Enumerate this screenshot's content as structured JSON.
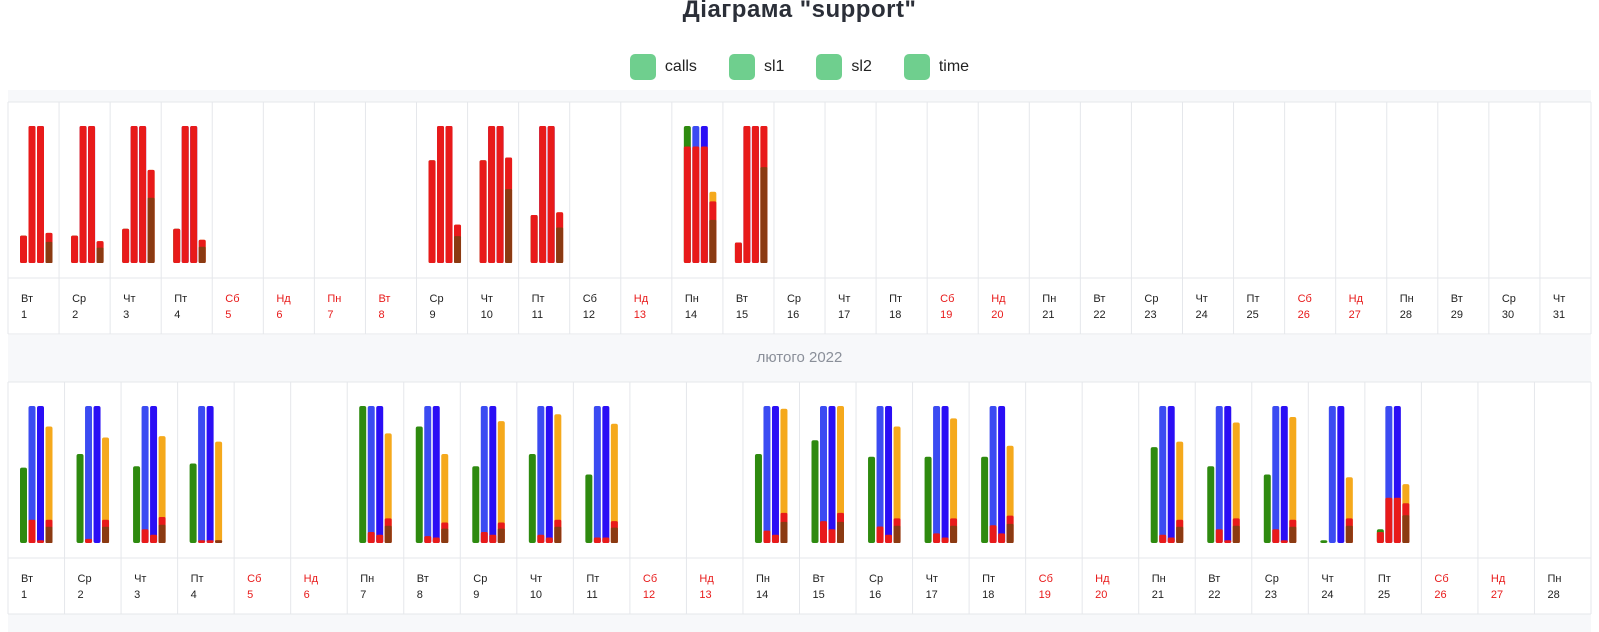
{
  "title": "Діаграма \"support\"",
  "legend": [
    {
      "label": "calls",
      "checked": true
    },
    {
      "label": "sl1",
      "checked": true
    },
    {
      "label": "sl2",
      "checked": true
    },
    {
      "label": "time",
      "checked": true
    }
  ],
  "colors": {
    "calls": "#2e8a0f",
    "sl1": "#3b4bf2",
    "sl2": "#2a0ef5",
    "time": "#f5a91c",
    "missed": "#e81a1a",
    "missed_dark": "#8b3a12",
    "weekend_text": "#e81a1a",
    "grid": "#e5e7eb",
    "band": "#f7f8fa",
    "check": "#6fcf8e"
  },
  "chart_data": [
    {
      "type": "bar",
      "month": "",
      "series_names": [
        "calls",
        "sl1",
        "sl2",
        "time"
      ],
      "days": [
        {
          "dow": "Вт",
          "day": "1",
          "weekend": false,
          "v": [
            0.2,
            1,
            1,
            0.22
          ],
          "r": [
            0.2,
            1,
            1,
            0.22
          ]
        },
        {
          "dow": "Ср",
          "day": "2",
          "weekend": false,
          "v": [
            0.2,
            1,
            1,
            0.16
          ],
          "r": [
            0.2,
            1,
            1,
            0.16
          ]
        },
        {
          "dow": "Чт",
          "day": "3",
          "weekend": false,
          "v": [
            0.25,
            1,
            1,
            0.68
          ],
          "r": [
            0.25,
            1,
            1,
            0.68
          ]
        },
        {
          "dow": "Пт",
          "day": "4",
          "weekend": false,
          "v": [
            0.25,
            1,
            1,
            0.17
          ],
          "r": [
            0.25,
            1,
            1,
            0.17
          ]
        },
        {
          "dow": "Сб",
          "day": "5",
          "weekend": true,
          "v": [],
          "r": []
        },
        {
          "dow": "Нд",
          "day": "6",
          "weekend": true,
          "v": [],
          "r": []
        },
        {
          "dow": "Пн",
          "day": "7",
          "weekend": true,
          "v": [],
          "r": []
        },
        {
          "dow": "Вт",
          "day": "8",
          "weekend": true,
          "v": [],
          "r": []
        },
        {
          "dow": "Ср",
          "day": "9",
          "weekend": false,
          "v": [
            0.75,
            1,
            1,
            0.28
          ],
          "r": [
            0.75,
            1,
            1,
            0.28
          ]
        },
        {
          "dow": "Чт",
          "day": "10",
          "weekend": false,
          "v": [
            0.75,
            1,
            1,
            0.77
          ],
          "r": [
            0.75,
            1,
            1,
            0.77
          ]
        },
        {
          "dow": "Пт",
          "day": "11",
          "weekend": false,
          "v": [
            0.35,
            1,
            1,
            0.37
          ],
          "r": [
            0.35,
            1,
            1,
            0.37
          ]
        },
        {
          "dow": "Сб",
          "day": "12",
          "weekend": false,
          "v": [],
          "r": []
        },
        {
          "dow": "Нд",
          "day": "13",
          "weekend": true,
          "v": [],
          "r": []
        },
        {
          "dow": "Пн",
          "day": "14",
          "weekend": false,
          "v": [
            1,
            1,
            1,
            0.52
          ],
          "r": [
            0.85,
            0.85,
            0.85,
            0.45
          ]
        },
        {
          "dow": "Вт",
          "day": "15",
          "weekend": false,
          "v": [
            0.15,
            1,
            1,
            1
          ],
          "r": [
            0.15,
            1,
            1,
            1
          ]
        },
        {
          "dow": "Ср",
          "day": "16",
          "weekend": false,
          "v": [],
          "r": []
        },
        {
          "dow": "Чт",
          "day": "17",
          "weekend": false,
          "v": [],
          "r": []
        },
        {
          "dow": "Пт",
          "day": "18",
          "weekend": false,
          "v": [],
          "r": []
        },
        {
          "dow": "Сб",
          "day": "19",
          "weekend": true,
          "v": [],
          "r": []
        },
        {
          "dow": "Нд",
          "day": "20",
          "weekend": true,
          "v": [],
          "r": []
        },
        {
          "dow": "Пн",
          "day": "21",
          "weekend": false,
          "v": [],
          "r": []
        },
        {
          "dow": "Вт",
          "day": "22",
          "weekend": false,
          "v": [],
          "r": []
        },
        {
          "dow": "Ср",
          "day": "23",
          "weekend": false,
          "v": [],
          "r": []
        },
        {
          "dow": "Чт",
          "day": "24",
          "weekend": false,
          "v": [],
          "r": []
        },
        {
          "dow": "Пт",
          "day": "25",
          "weekend": false,
          "v": [],
          "r": []
        },
        {
          "dow": "Сб",
          "day": "26",
          "weekend": true,
          "v": [],
          "r": []
        },
        {
          "dow": "Нд",
          "day": "27",
          "weekend": true,
          "v": [],
          "r": []
        },
        {
          "dow": "Пн",
          "day": "28",
          "weekend": false,
          "v": [],
          "r": []
        },
        {
          "dow": "Вт",
          "day": "29",
          "weekend": false,
          "v": [],
          "r": []
        },
        {
          "dow": "Ср",
          "day": "30",
          "weekend": false,
          "v": [],
          "r": []
        },
        {
          "dow": "Чт",
          "day": "31",
          "weekend": false,
          "v": [],
          "r": []
        }
      ]
    },
    {
      "type": "bar",
      "month": "лютого 2022",
      "series_names": [
        "calls",
        "sl1",
        "sl2",
        "time"
      ],
      "days": [
        {
          "dow": "Вт",
          "day": "1",
          "weekend": false,
          "v": [
            0.55,
            1,
            1,
            0.85
          ],
          "r": [
            0,
            0.17,
            0.02,
            0.17
          ]
        },
        {
          "dow": "Ср",
          "day": "2",
          "weekend": false,
          "v": [
            0.65,
            1,
            1,
            0.77
          ],
          "r": [
            0,
            0.03,
            0,
            0.17
          ]
        },
        {
          "dow": "Чт",
          "day": "3",
          "weekend": false,
          "v": [
            0.56,
            1,
            1,
            0.78
          ],
          "r": [
            0,
            0.1,
            0.06,
            0.19
          ]
        },
        {
          "dow": "Пт",
          "day": "4",
          "weekend": false,
          "v": [
            0.58,
            1,
            1,
            0.74
          ],
          "r": [
            0,
            0.02,
            0.02,
            0.02
          ]
        },
        {
          "dow": "Сб",
          "day": "5",
          "weekend": true,
          "v": [],
          "r": []
        },
        {
          "dow": "Нд",
          "day": "6",
          "weekend": true,
          "v": [],
          "r": []
        },
        {
          "dow": "Пн",
          "day": "7",
          "weekend": false,
          "v": [
            1,
            1,
            1,
            0.8
          ],
          "r": [
            0,
            0.08,
            0.06,
            0.18
          ]
        },
        {
          "dow": "Вт",
          "day": "8",
          "weekend": false,
          "v": [
            0.85,
            1,
            1,
            0.65
          ],
          "r": [
            0,
            0.05,
            0.04,
            0.15
          ]
        },
        {
          "dow": "Ср",
          "day": "9",
          "weekend": false,
          "v": [
            0.56,
            1,
            1,
            0.89
          ],
          "r": [
            0,
            0.08,
            0.06,
            0.15
          ]
        },
        {
          "dow": "Чт",
          "day": "10",
          "weekend": false,
          "v": [
            0.65,
            1,
            1,
            0.94
          ],
          "r": [
            0,
            0.06,
            0.04,
            0.17
          ]
        },
        {
          "dow": "Пт",
          "day": "11",
          "weekend": false,
          "v": [
            0.5,
            1,
            1,
            0.87
          ],
          "r": [
            0,
            0.04,
            0.04,
            0.16
          ]
        },
        {
          "dow": "Сб",
          "day": "12",
          "weekend": true,
          "v": [],
          "r": []
        },
        {
          "dow": "Нд",
          "day": "13",
          "weekend": true,
          "v": [],
          "r": []
        },
        {
          "dow": "Пн",
          "day": "14",
          "weekend": false,
          "v": [
            0.65,
            1,
            1,
            0.98
          ],
          "r": [
            0,
            0.09,
            0.06,
            0.22
          ]
        },
        {
          "dow": "Вт",
          "day": "15",
          "weekend": false,
          "v": [
            0.75,
            1,
            1,
            1
          ],
          "r": [
            0,
            0.16,
            0.1,
            0.22
          ]
        },
        {
          "dow": "Ср",
          "day": "16",
          "weekend": false,
          "v": [
            0.63,
            1,
            1,
            0.85
          ],
          "r": [
            0,
            0.12,
            0.06,
            0.18
          ]
        },
        {
          "dow": "Чт",
          "day": "17",
          "weekend": false,
          "v": [
            0.63,
            1,
            1,
            0.91
          ],
          "r": [
            0,
            0.07,
            0.04,
            0.18
          ]
        },
        {
          "dow": "Пт",
          "day": "18",
          "weekend": false,
          "v": [
            0.63,
            1,
            1,
            0.71
          ],
          "r": [
            0,
            0.13,
            0.07,
            0.2
          ]
        },
        {
          "dow": "Сб",
          "day": "19",
          "weekend": true,
          "v": [],
          "r": []
        },
        {
          "dow": "Нд",
          "day": "20",
          "weekend": true,
          "v": [],
          "r": []
        },
        {
          "dow": "Пн",
          "day": "21",
          "weekend": false,
          "v": [
            0.7,
            1,
            1,
            0.74
          ],
          "r": [
            0,
            0.06,
            0.04,
            0.17
          ]
        },
        {
          "dow": "Вт",
          "day": "22",
          "weekend": false,
          "v": [
            0.56,
            1,
            1,
            0.88
          ],
          "r": [
            0,
            0.1,
            0.02,
            0.18
          ]
        },
        {
          "dow": "Ср",
          "day": "23",
          "weekend": false,
          "v": [
            0.5,
            1,
            1,
            0.92
          ],
          "r": [
            0,
            0.1,
            0.02,
            0.17
          ]
        },
        {
          "dow": "Чт",
          "day": "24",
          "weekend": false,
          "v": [
            0.02,
            1,
            1,
            0.48
          ],
          "r": [
            0,
            0,
            0,
            0.18
          ]
        },
        {
          "dow": "Пт",
          "day": "25",
          "weekend": false,
          "v": [
            0.1,
            1,
            1,
            0.43
          ],
          "r": [
            0.08,
            0.33,
            0.33,
            0.29
          ]
        },
        {
          "dow": "Сб",
          "day": "26",
          "weekend": true,
          "v": [],
          "r": []
        },
        {
          "dow": "Нд",
          "day": "27",
          "weekend": true,
          "v": [],
          "r": []
        },
        {
          "dow": "Пн",
          "day": "28",
          "weekend": false,
          "v": [],
          "r": []
        }
      ]
    }
  ]
}
